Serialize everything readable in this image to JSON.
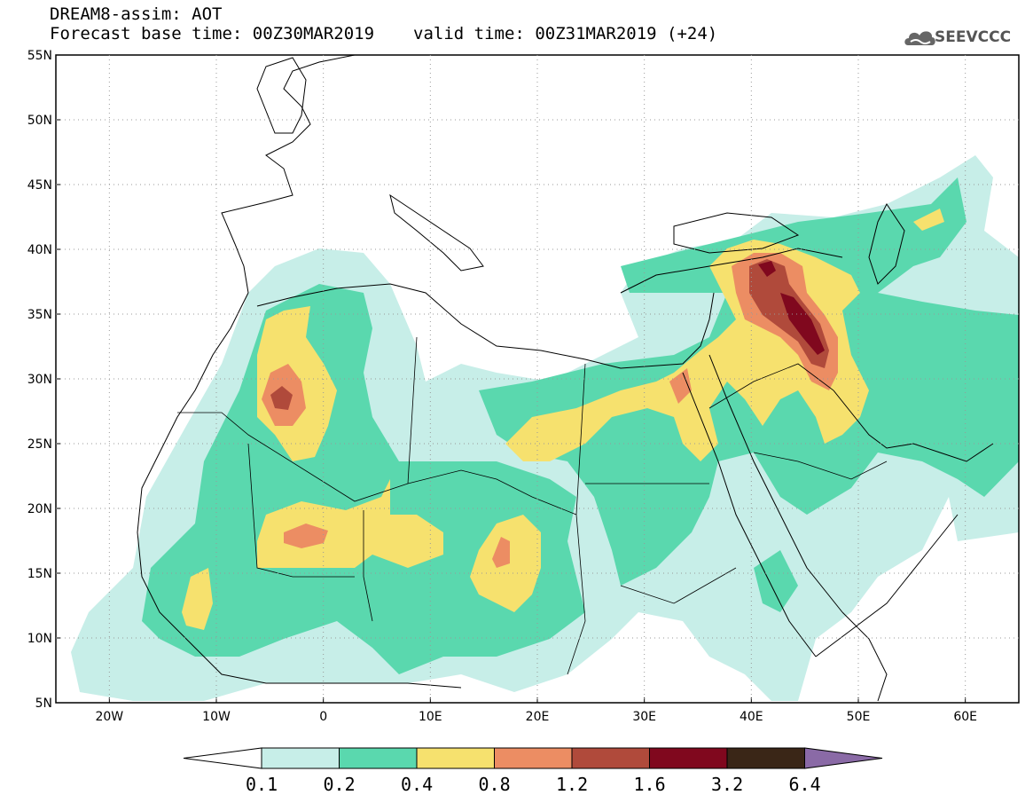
{
  "header": {
    "title": "DREAM8-assim: AOT",
    "base_time": "Forecast base time: 00Z30MAR2019",
    "valid_time": "valid time: 00Z31MAR2019 (+24)",
    "logo_text": "SEEVCCC"
  },
  "map": {
    "lon_range": [
      -25,
      65
    ],
    "lat_range": [
      5,
      55
    ],
    "lon_ticks": [
      "20W",
      "10W",
      "0",
      "10E",
      "20E",
      "30E",
      "40E",
      "50E",
      "60E"
    ],
    "lat_ticks": [
      "55N",
      "50N",
      "45N",
      "40N",
      "35N",
      "30N",
      "25N",
      "20N",
      "15N",
      "10N",
      "5N"
    ],
    "variable": "Aerosol optical thickness (AOT)"
  },
  "legend": {
    "labels": [
      "0.1",
      "0.2",
      "0.4",
      "0.8",
      "1.2",
      "1.6",
      "3.2",
      "6.4"
    ],
    "colors": [
      "#ffffff",
      "#c7eee8",
      "#5ad8ae",
      "#f6e16e",
      "#ec8d63",
      "#b04a3b",
      "#80081e",
      "#3a2617",
      "#8a6aa6"
    ]
  }
}
